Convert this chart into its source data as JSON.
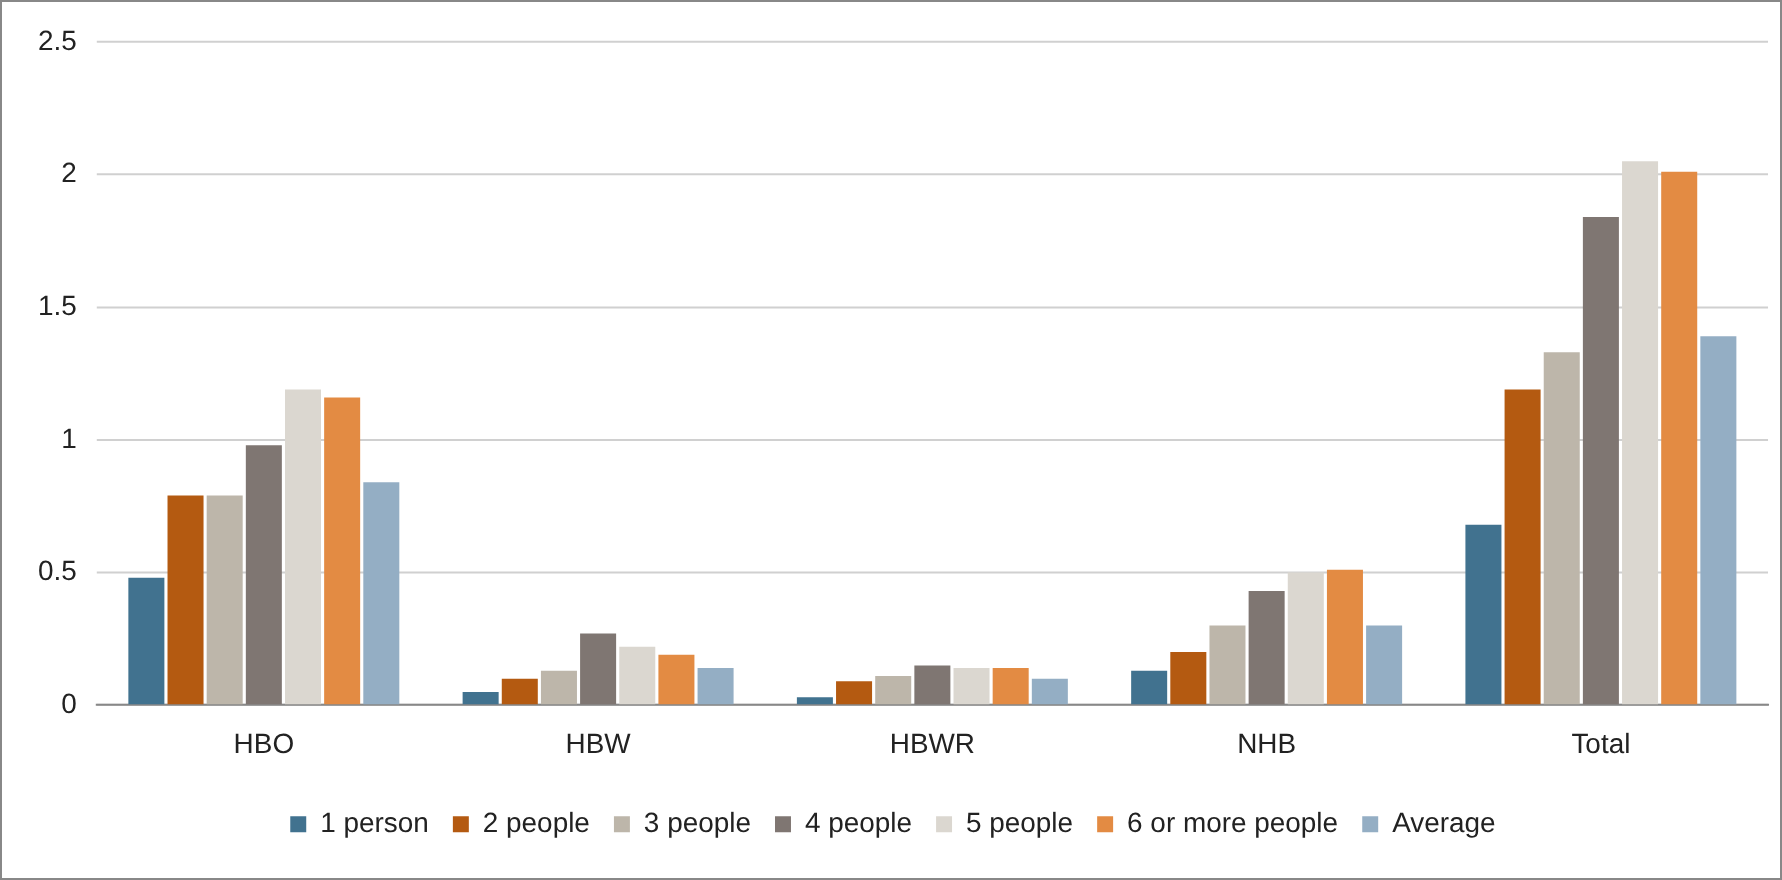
{
  "chart_data": {
    "type": "bar",
    "categories": [
      "HBO",
      "HBW",
      "HBWR",
      "NHB",
      "Total"
    ],
    "series": [
      {
        "name": "1 person",
        "color": "#41728f",
        "values": [
          0.48,
          0.05,
          0.03,
          0.13,
          0.68
        ]
      },
      {
        "name": "2 people",
        "color": "#b45a11",
        "values": [
          0.79,
          0.1,
          0.09,
          0.2,
          1.19
        ]
      },
      {
        "name": "3 people",
        "color": "#bdb6aa",
        "values": [
          0.79,
          0.13,
          0.11,
          0.3,
          1.33
        ]
      },
      {
        "name": "4 people",
        "color": "#7f7672",
        "values": [
          0.98,
          0.27,
          0.15,
          0.43,
          1.84
        ]
      },
      {
        "name": "5 people",
        "color": "#dbd7d0",
        "values": [
          1.19,
          0.22,
          0.14,
          0.5,
          2.05
        ]
      },
      {
        "name": "6 or more people",
        "color": "#e38b43",
        "values": [
          1.16,
          0.19,
          0.14,
          0.51,
          2.01
        ]
      },
      {
        "name": "Average",
        "color": "#94aec4",
        "values": [
          0.84,
          0.14,
          0.1,
          0.3,
          1.39
        ]
      }
    ],
    "ylim": [
      0,
      2.5
    ],
    "yticks": [
      0,
      0.5,
      1,
      1.5,
      2,
      2.5
    ],
    "grid": "y",
    "legend": "bottom"
  }
}
